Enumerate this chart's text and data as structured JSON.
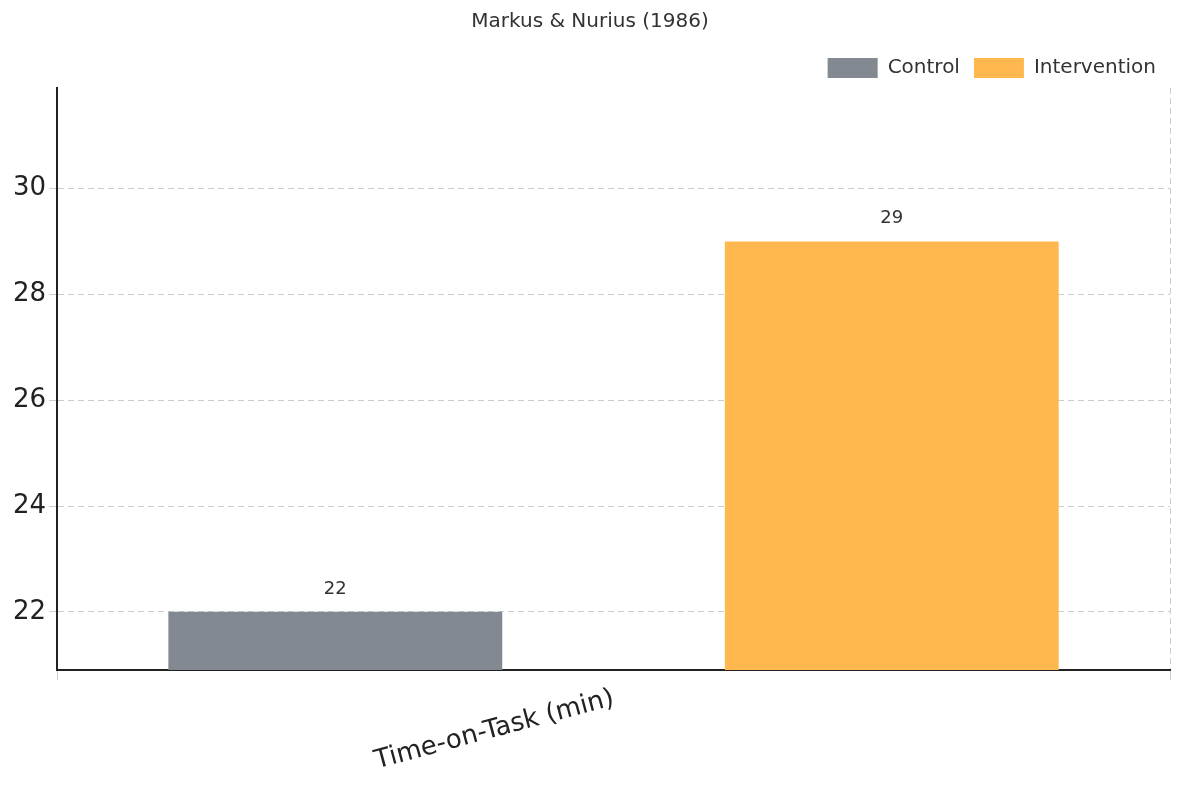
{
  "chart_data": {
    "type": "bar",
    "title": "Markus & Nurius (1986)",
    "categories": [
      "Time-on-Task (min)"
    ],
    "series": [
      {
        "name": "Control",
        "color": "#838991",
        "values": [
          22
        ]
      },
      {
        "name": "Intervention",
        "color": "#ffb84f",
        "values": [
          29
        ]
      }
    ],
    "ylim": [
      20.9,
      31.9
    ],
    "yticks": [
      22,
      24,
      26,
      28,
      30
    ],
    "grid": true,
    "legend": "top right",
    "data_labels": true
  }
}
